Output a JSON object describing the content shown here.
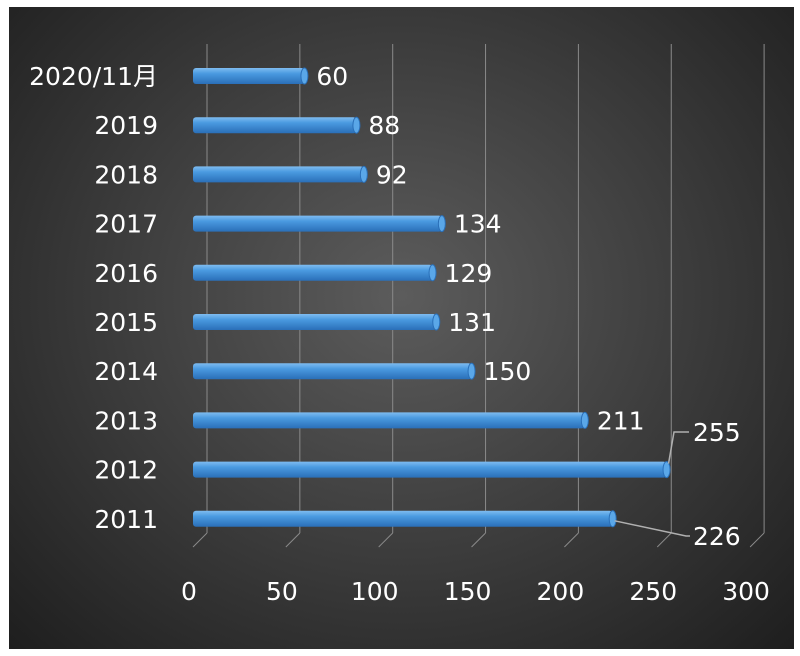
{
  "chart_data": {
    "type": "bar",
    "orientation": "horizontal",
    "categories": [
      "2011",
      "2012",
      "2013",
      "2014",
      "2015",
      "2016",
      "2017",
      "2018",
      "2019",
      "2020/11月"
    ],
    "values": [
      226,
      255,
      211,
      150,
      131,
      129,
      134,
      92,
      88,
      60
    ],
    "xlim": [
      0,
      300
    ],
    "x_ticks": [
      "0",
      "50",
      "100",
      "150",
      "200",
      "250",
      "300"
    ],
    "grid": true,
    "bar_color": "#3f8fd6",
    "background": "dark gradient",
    "style": "3d-cylinder"
  }
}
